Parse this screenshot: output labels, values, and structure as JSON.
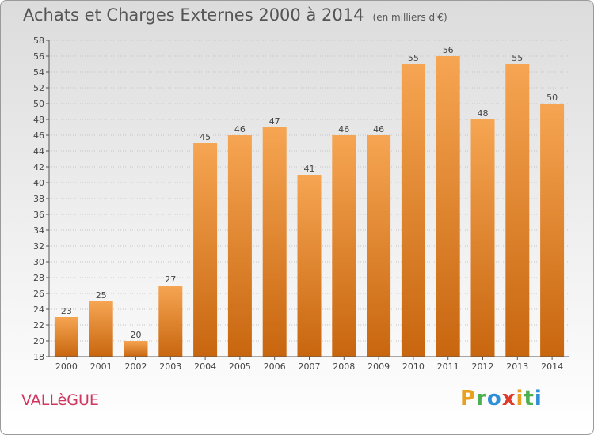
{
  "chart_data": {
    "type": "bar",
    "title": "Achats et Charges Externes 2000 à 2014",
    "subtitle": "(en milliers d'€)",
    "categories": [
      "2000",
      "2001",
      "2002",
      "2003",
      "2004",
      "2005",
      "2006",
      "2007",
      "2008",
      "2009",
      "2010",
      "2011",
      "2012",
      "2013",
      "2014"
    ],
    "values": [
      23,
      25,
      20,
      27,
      45,
      46,
      47,
      41,
      46,
      46,
      55,
      56,
      48,
      55,
      50
    ],
    "ylim": [
      18,
      58
    ],
    "ytick_step": 2,
    "grid": true,
    "xlabel": "",
    "ylabel": "",
    "bar_color_light": "#f6a552",
    "bar_color_dark": "#c8660f"
  },
  "footer": {
    "commune": "VALLèGUE",
    "logo_letters": [
      "P",
      "r",
      "o",
      "x",
      "i",
      "t",
      "i"
    ],
    "logo_colors": [
      "#e8a020",
      "#4caf50",
      "#2e8fd8",
      "#e03a2a",
      "#e8a020",
      "#4caf50",
      "#2e8fd8"
    ]
  }
}
